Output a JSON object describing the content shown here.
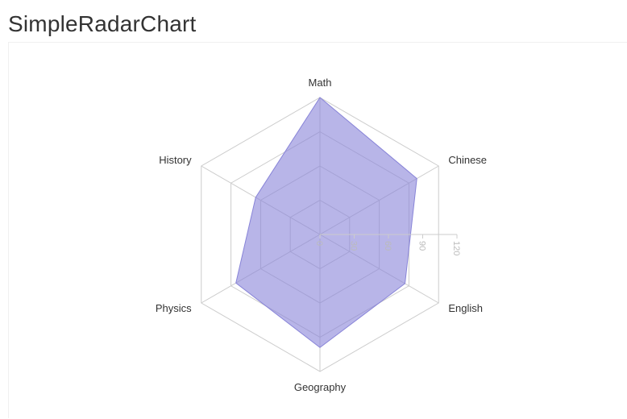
{
  "page": {
    "title": "SimpleRadarChart"
  },
  "chart_data": {
    "type": "radar",
    "axes": [
      "Math",
      "Chinese",
      "English",
      "Geography",
      "Physics",
      "History"
    ],
    "series": [
      {
        "values": [
          120,
          98,
          86,
          99,
          85,
          65
        ]
      }
    ],
    "radius_ticks": [
      0,
      30,
      60,
      90,
      120
    ],
    "rlim": [
      0,
      120
    ],
    "fill_color": "#8884d8",
    "grid_color": "#cccccc"
  }
}
